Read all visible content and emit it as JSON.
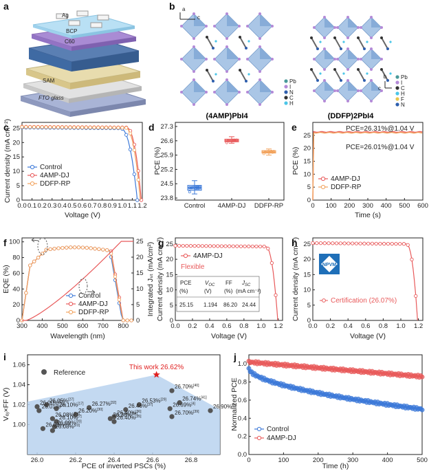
{
  "panel_labels": [
    "a",
    "b",
    "c",
    "d",
    "e",
    "f",
    "g",
    "h",
    "i",
    "j"
  ],
  "device_layers": [
    "Ag",
    "BCP",
    "C60",
    "SAM",
    "FTO glass"
  ],
  "structures": {
    "left_title": "(4AMP)PbI4",
    "right_title": "(DDFP)2PbI4",
    "legend_left": [
      "Pb",
      "I",
      "N",
      "C",
      "H"
    ],
    "legend_right": [
      "Pb",
      "I",
      "C",
      "H",
      "F",
      "N"
    ],
    "axes_left": [
      "a",
      "c"
    ],
    "axes_right": [
      "c",
      "b"
    ]
  },
  "colors": {
    "control": "#3b78d8",
    "amp": "#e8595a",
    "ddfp": "#f2a25c",
    "triangle": "#b8d2ef",
    "star": "#e02020"
  },
  "chart_data": [
    {
      "panel": "c",
      "type": "line",
      "xlabel": "Voltage (V)",
      "ylabel": "Current density (mA cm⁻²)",
      "xlim": [
        0.0,
        1.2
      ],
      "ylim": [
        0,
        27
      ],
      "xticks": [
        "0.0",
        "0.1",
        "0.2",
        "0.3",
        "0.4",
        "0.5",
        "0.6",
        "0.7",
        "0.8",
        "0.9",
        "1.0",
        "1.1",
        "1.2"
      ],
      "yticks": [
        "0",
        "5",
        "10",
        "15",
        "20",
        "25"
      ],
      "legend_position": "center-left",
      "series": [
        {
          "name": "Control",
          "jsc": 25.2,
          "voc": 1.15,
          "knee": 0.98
        },
        {
          "name": "4AMP-DJ",
          "jsc": 25.5,
          "voc": 1.19,
          "knee": 1.04
        },
        {
          "name": "DDFP-RP",
          "jsc": 25.4,
          "voc": 1.18,
          "knee": 1.03
        }
      ]
    },
    {
      "panel": "d",
      "type": "box",
      "ylabel": "PCE (%)",
      "ylim": [
        23.7,
        27.5
      ],
      "yticks": [
        "23.8",
        "24.5",
        "25.2",
        "25.9",
        "26.6",
        "27.3"
      ],
      "categories": [
        "Control",
        "4AMP-DJ",
        "DDFP-RP"
      ],
      "boxes": [
        {
          "name": "Control",
          "min": 24.0,
          "q1": 24.18,
          "median": 24.3,
          "q3": 24.42,
          "max": 24.65
        },
        {
          "name": "4AMP-DJ",
          "min": 26.48,
          "q1": 26.55,
          "median": 26.6,
          "q3": 26.68,
          "max": 26.8
        },
        {
          "name": "DDFP-RP",
          "min": 25.9,
          "q1": 26.0,
          "median": 26.05,
          "q3": 26.12,
          "max": 26.2
        }
      ]
    },
    {
      "panel": "e",
      "type": "line",
      "xlabel": "Time (s)",
      "ylabel": "PCE (%)",
      "xlim": [
        0,
        600
      ],
      "ylim": [
        0,
        30
      ],
      "xticks": [
        "0",
        "100",
        "200",
        "300",
        "400",
        "500",
        "600"
      ],
      "yticks": [
        "0",
        "5",
        "10",
        "15",
        "20",
        "25"
      ],
      "annotations": [
        "PCE=26.31%@1.04 V",
        "PCE=26.01%@1.04 V"
      ],
      "legend_position": "bottom-left",
      "series": [
        {
          "name": "4AMP-DJ",
          "steady": 26.31
        },
        {
          "name": "DDFP-RP",
          "steady": 26.01
        }
      ]
    },
    {
      "panel": "f",
      "type": "line",
      "xlabel": "Wavelength (nm)",
      "ylabel": "EQE (%)",
      "ylabel_right": "Integrated Jₛₜ (mA/cm²)",
      "xlim": [
        300,
        850
      ],
      "ylim": [
        0,
        105
      ],
      "ylim_right": [
        0,
        25
      ],
      "xticks": [
        "300",
        "400",
        "500",
        "600",
        "700",
        "800"
      ],
      "yticks": [
        "0",
        "20",
        "40",
        "60",
        "80",
        "100"
      ],
      "yticks_right": [
        "0",
        "5",
        "10",
        "15",
        "20",
        "25"
      ],
      "legend_position": "bottom-right",
      "series": [
        {
          "name": "Control",
          "edge": 775
        },
        {
          "name": "4AMP-DJ",
          "edge": 780
        },
        {
          "name": "DDFP-RP",
          "edge": 778
        }
      ],
      "integrated_final": 25.0
    },
    {
      "panel": "g",
      "type": "line",
      "xlabel": "Voltage (V)",
      "ylabel": "Current density (mA cm⁻²)",
      "xlim": [
        0.0,
        1.25
      ],
      "ylim": [
        0,
        27
      ],
      "xticks": [
        "0.0",
        "0.2",
        "0.4",
        "0.6",
        "0.8",
        "1.0",
        "1.2"
      ],
      "yticks": [
        "0",
        "5",
        "10",
        "15",
        "20",
        "25"
      ],
      "legend": [
        "4AMP-DJ",
        "Flexible"
      ],
      "table": {
        "headers": [
          "PCE",
          "V",
          "FF",
          "J"
        ],
        "header_subs": [
          "",
          "OC",
          "",
          "SC"
        ],
        "units": [
          "(%)",
          "(V)",
          "(%)",
          "(mA cm⁻²)"
        ],
        "values": [
          "25.15",
          "1.194",
          "86.20",
          "24.44"
        ]
      },
      "series": [
        {
          "name": "4AMP-DJ",
          "jsc": 24.44,
          "voc": 1.194,
          "knee": 1.05
        }
      ]
    },
    {
      "panel": "h",
      "type": "line",
      "xlabel": "Voltage (V)",
      "ylabel": "Current density (mA cm⁻²)",
      "xlim": [
        0.0,
        1.25
      ],
      "ylim": [
        0,
        27
      ],
      "xticks": [
        "0.0",
        "0.2",
        "0.4",
        "0.6",
        "0.8",
        "1.0",
        "1.2"
      ],
      "yticks": [
        "0",
        "5",
        "10",
        "15",
        "20",
        "25"
      ],
      "logo_text": "NPVM",
      "series": [
        {
          "name": "Certification (26.07%)",
          "jsc": 25.3,
          "voc": 1.19,
          "knee": 1.06
        }
      ]
    },
    {
      "panel": "i",
      "type": "scatter",
      "xlabel": "PCE of inverted PSCs (%)",
      "ylabel": "Vₒⱼ×FF (V)",
      "xlim": [
        25.95,
        26.95
      ],
      "ylim": [
        0.97,
        1.07
      ],
      "xticks": [
        "26.0",
        "26.2",
        "26.4",
        "26.6",
        "26.8"
      ],
      "yticks": [
        "1.00",
        "1.02",
        "1.04",
        "1.06"
      ],
      "legend": "Reference",
      "highlight": {
        "label": "This work 26.62%",
        "x": 26.62,
        "y": 1.05
      },
      "points": [
        {
          "x": 26.05,
          "y": 1.02,
          "label": "26.05%",
          "ref": "[27]"
        },
        {
          "x": 26.0,
          "y": 1.018,
          "label": "26.00%",
          "ref": "[22]"
        },
        {
          "x": 26.1,
          "y": 1.016,
          "label": "26.10%",
          "ref": "[17]"
        },
        {
          "x": 26.01,
          "y": 1.014,
          "label": "26.01%",
          "ref": "[25]"
        },
        {
          "x": 26.27,
          "y": 1.017,
          "label": "26.27%",
          "ref": "[32]"
        },
        {
          "x": 26.2,
          "y": 1.01,
          "label": "26.20%",
          "ref": "[30]"
        },
        {
          "x": 26.53,
          "y": 1.02,
          "label": "26.53%",
          "ref": "[29]"
        },
        {
          "x": 26.46,
          "y": 1.015,
          "label": "26.46%",
          "ref": "[37]"
        },
        {
          "x": 26.4,
          "y": 1.008,
          "label": "26.40%",
          "ref": "[36]"
        },
        {
          "x": 26.38,
          "y": 1.006,
          "label": "26.38%",
          "ref": "[34]"
        },
        {
          "x": 26.4,
          "y": 1.003,
          "label": "26.40%",
          "ref": "[35]"
        },
        {
          "x": 26.7,
          "y": 1.034,
          "label": "26.70%",
          "ref": "[40]"
        },
        {
          "x": 26.74,
          "y": 1.022,
          "label": "26.74%",
          "ref": "[41]"
        },
        {
          "x": 26.69,
          "y": 1.016,
          "label": "26.69%",
          "ref": "[4]"
        },
        {
          "x": 26.9,
          "y": 1.014,
          "label": "26.90%",
          "ref": "[5]"
        },
        {
          "x": 26.7,
          "y": 1.008,
          "label": "26.70%",
          "ref": "[39]"
        },
        {
          "x": 26.08,
          "y": 1.006,
          "label": "26.08%",
          "ref": "[24]"
        },
        {
          "x": 26.1,
          "y": 1.003,
          "label": "26.10%",
          "ref": "[7]"
        },
        {
          "x": 26.09,
          "y": 0.998,
          "label": "26.09%",
          "ref": "[20]"
        },
        {
          "x": 26.03,
          "y": 0.996,
          "label": "26.03%",
          "ref": "[19]"
        },
        {
          "x": 26.08,
          "y": 0.994,
          "label": "26.08%",
          "ref": "[23]"
        }
      ]
    },
    {
      "panel": "j",
      "type": "scatter",
      "xlabel": "Time (h)",
      "ylabel": "Normalized PCE",
      "xlim": [
        0,
        500
      ],
      "ylim": [
        0.0,
        1.1
      ],
      "xticks": [
        "0",
        "100",
        "200",
        "300",
        "400",
        "500"
      ],
      "yticks": [
        "0.0",
        "0.2",
        "0.4",
        "0.6",
        "0.8",
        "1.0"
      ],
      "legend_position": "bottom-left",
      "series": [
        {
          "name": "Control",
          "start": 0.95,
          "end": 0.5
        },
        {
          "name": "4AMP-DJ",
          "start": 1.02,
          "end": 0.86
        }
      ]
    }
  ]
}
